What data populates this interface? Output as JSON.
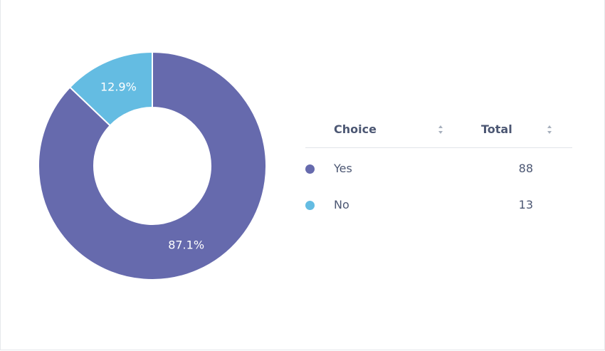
{
  "chart_data": {
    "type": "pie",
    "variant": "donut",
    "categories": [
      "Yes",
      "No"
    ],
    "values": [
      88,
      13
    ],
    "percent_labels": [
      "87.1%",
      "12.9%"
    ],
    "colors": [
      "#666AAD",
      "#64BCE2"
    ]
  },
  "table": {
    "headers": {
      "choice": "Choice",
      "total": "Total"
    },
    "rows": [
      {
        "choice": "Yes",
        "total": "88",
        "color": "#666AAD"
      },
      {
        "choice": "No",
        "total": "13",
        "color": "#64BCE2"
      }
    ]
  }
}
